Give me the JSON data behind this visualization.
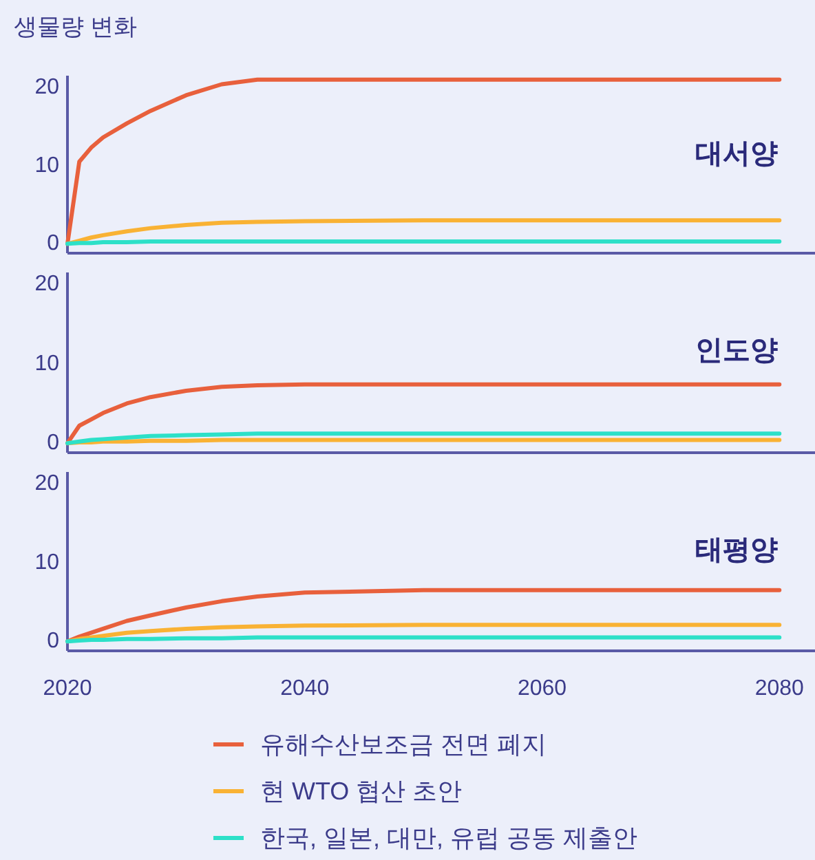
{
  "chart_data": [
    {
      "type": "line",
      "title": "대서양",
      "ylabel": "생물량 변화",
      "x": [
        2020,
        2021,
        2022,
        2023,
        2025,
        2027,
        2030,
        2033,
        2036,
        2040,
        2050,
        2060,
        2070,
        2080
      ],
      "xlim": [
        2020,
        2083
      ],
      "ylim": [
        -1.2,
        21.5
      ],
      "yticks": [
        0,
        10,
        20
      ],
      "tick_labels": "y",
      "legend": false,
      "series": [
        {
          "color": "#e8603c",
          "values": [
            0,
            10.5,
            12.3,
            13.6,
            15.4,
            17,
            19,
            20.4,
            21,
            21,
            21,
            21,
            21,
            21
          ]
        },
        {
          "color": "#f9b234",
          "values": [
            0,
            0.4,
            0.8,
            1.1,
            1.6,
            2,
            2.4,
            2.7,
            2.8,
            2.9,
            3,
            3,
            3,
            3
          ]
        },
        {
          "color": "#2de0c8",
          "values": [
            0,
            0.1,
            0.1,
            0.2,
            0.2,
            0.3,
            0.3,
            0.3,
            0.3,
            0.3,
            0.3,
            0.3,
            0.3,
            0.3
          ]
        }
      ]
    },
    {
      "type": "line",
      "title": "인도양",
      "x": [
        2020,
        2021,
        2022,
        2023,
        2025,
        2027,
        2030,
        2033,
        2036,
        2040,
        2050,
        2060,
        2070,
        2080
      ],
      "xlim": [
        2020,
        2083
      ],
      "ylim": [
        -1.2,
        21.5
      ],
      "yticks": [
        0,
        10,
        20
      ],
      "tick_labels": "y",
      "legend": false,
      "series": [
        {
          "color": "#e8603c",
          "values": [
            0,
            2.2,
            3,
            3.8,
            5,
            5.8,
            6.6,
            7.1,
            7.3,
            7.4,
            7.4,
            7.4,
            7.4,
            7.4
          ]
        },
        {
          "color": "#f9b234",
          "values": [
            0,
            0.1,
            0.1,
            0.2,
            0.2,
            0.3,
            0.3,
            0.4,
            0.4,
            0.4,
            0.4,
            0.4,
            0.4,
            0.4
          ]
        },
        {
          "color": "#2de0c8",
          "values": [
            0,
            0.2,
            0.4,
            0.5,
            0.7,
            0.9,
            1,
            1.1,
            1.2,
            1.2,
            1.2,
            1.2,
            1.2,
            1.2
          ]
        }
      ]
    },
    {
      "type": "line",
      "title": "태평양",
      "x": [
        2020,
        2021,
        2022,
        2023,
        2025,
        2027,
        2030,
        2033,
        2036,
        2040,
        2050,
        2060,
        2070,
        2080
      ],
      "xlim": [
        2020,
        2083
      ],
      "xticks": [
        2020,
        2040,
        2060,
        2080
      ],
      "ylim": [
        -1.2,
        21.5
      ],
      "yticks": [
        0,
        10,
        20
      ],
      "legend": "bottom",
      "series": [
        {
          "name": "유해수산보조금 전면 폐지",
          "color": "#e8603c",
          "values": [
            0,
            0.6,
            1.1,
            1.6,
            2.6,
            3.3,
            4.3,
            5.1,
            5.7,
            6.2,
            6.5,
            6.5,
            6.5,
            6.5
          ]
        },
        {
          "name": "현 WTO 협산 초안",
          "color": "#f9b234",
          "values": [
            0,
            0.3,
            0.5,
            0.7,
            1.1,
            1.3,
            1.6,
            1.8,
            1.9,
            2,
            2.1,
            2.1,
            2.1,
            2.1
          ]
        },
        {
          "name": "한국, 일본, 대만, 유럽 공동 제출안",
          "color": "#2de0c8",
          "values": [
            0,
            0.1,
            0.2,
            0.2,
            0.3,
            0.3,
            0.4,
            0.4,
            0.5,
            0.5,
            0.5,
            0.5,
            0.5,
            0.5
          ]
        }
      ]
    }
  ]
}
